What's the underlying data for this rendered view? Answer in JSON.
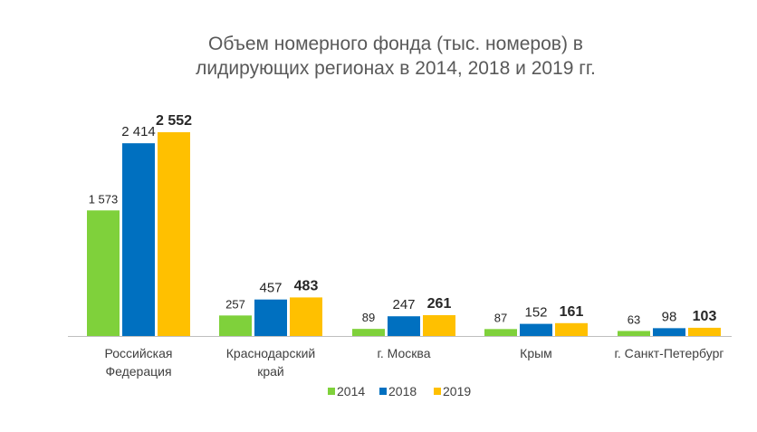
{
  "chart_data": {
    "type": "bar",
    "title_lines": [
      "Объем номерного фонда (тыс. номеров) в",
      "лидирующих регионах в 2014, 2018 и 2019 гг."
    ],
    "categories": [
      [
        "Российская",
        "Федерация"
      ],
      [
        "Краснодарский",
        "край"
      ],
      [
        "г. Москва"
      ],
      [
        "Крым"
      ],
      [
        "г. Санкт-Петербург"
      ]
    ],
    "series": [
      {
        "name": "2014",
        "color": "#7FD13B",
        "values": [
          1573,
          257,
          89,
          87,
          63
        ],
        "labels": [
          "1 573",
          "257",
          "89",
          "87",
          "63"
        ]
      },
      {
        "name": "2018",
        "color": "#0070C0",
        "values": [
          2414,
          457,
          247,
          152,
          98
        ],
        "labels": [
          "2 414",
          "457",
          "247",
          "152",
          "98"
        ]
      },
      {
        "name": "2019",
        "color": "#FFC000",
        "values": [
          2552,
          483,
          261,
          161,
          103
        ],
        "labels": [
          "2 552",
          "483",
          "261",
          "161",
          "103"
        ]
      }
    ],
    "ylim": [
      0,
      2552
    ],
    "grid": false,
    "legend_position": "bottom"
  }
}
